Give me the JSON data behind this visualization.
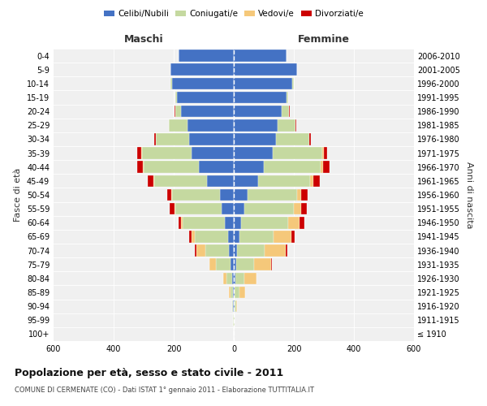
{
  "age_groups": [
    "100+",
    "95-99",
    "90-94",
    "85-89",
    "80-84",
    "75-79",
    "70-74",
    "65-69",
    "60-64",
    "55-59",
    "50-54",
    "45-49",
    "40-44",
    "35-39",
    "30-34",
    "25-29",
    "20-24",
    "15-19",
    "10-14",
    "5-9",
    "0-4"
  ],
  "birth_years": [
    "≤ 1910",
    "1911-1915",
    "1916-1920",
    "1921-1925",
    "1926-1930",
    "1931-1935",
    "1936-1940",
    "1941-1945",
    "1946-1950",
    "1951-1955",
    "1956-1960",
    "1961-1965",
    "1966-1970",
    "1971-1975",
    "1976-1980",
    "1981-1985",
    "1986-1990",
    "1991-1995",
    "1996-2000",
    "2001-2005",
    "2006-2010"
  ],
  "maschi": {
    "celibi": [
      1,
      1,
      2,
      3,
      5,
      10,
      15,
      20,
      30,
      40,
      45,
      90,
      115,
      140,
      150,
      155,
      175,
      190,
      205,
      210,
      185
    ],
    "coniugati": [
      0,
      1,
      3,
      8,
      20,
      50,
      80,
      110,
      140,
      155,
      160,
      175,
      185,
      165,
      110,
      60,
      20,
      5,
      5,
      0,
      0
    ],
    "vedovi": [
      0,
      0,
      1,
      5,
      10,
      20,
      30,
      10,
      5,
      3,
      2,
      2,
      2,
      2,
      0,
      0,
      0,
      0,
      0,
      0,
      0
    ],
    "divorziati": [
      0,
      0,
      0,
      0,
      1,
      2,
      5,
      8,
      10,
      15,
      15,
      20,
      20,
      15,
      5,
      2,
      1,
      0,
      0,
      0,
      0
    ]
  },
  "femmine": {
    "nubili": [
      1,
      1,
      2,
      3,
      5,
      8,
      12,
      18,
      25,
      35,
      45,
      80,
      100,
      130,
      140,
      145,
      160,
      175,
      195,
      210,
      175
    ],
    "coniugate": [
      0,
      1,
      5,
      15,
      30,
      60,
      90,
      115,
      155,
      165,
      165,
      175,
      190,
      165,
      110,
      60,
      25,
      5,
      5,
      0,
      0
    ],
    "vedove": [
      0,
      1,
      5,
      20,
      40,
      55,
      70,
      60,
      40,
      25,
      15,
      10,
      8,
      5,
      2,
      1,
      0,
      0,
      0,
      0,
      0
    ],
    "divorziate": [
      0,
      0,
      0,
      1,
      2,
      3,
      6,
      10,
      15,
      18,
      20,
      22,
      20,
      12,
      5,
      2,
      1,
      0,
      0,
      0,
      0
    ]
  },
  "colors": {
    "celibi": "#4472c4",
    "coniugati": "#c5d9a0",
    "vedovi": "#f5c87a",
    "divorziati": "#cc0000"
  },
  "legend_labels": [
    "Celibi/Nubili",
    "Coniugati/e",
    "Vedovi/e",
    "Divorziati/e"
  ],
  "title": "Popolazione per età, sesso e stato civile - 2011",
  "subtitle": "COMUNE DI CERMENATE (CO) - Dati ISTAT 1° gennaio 2011 - Elaborazione TUTTITALIA.IT",
  "xlabel_left": "Maschi",
  "xlabel_right": "Femmine",
  "ylabel_left": "Fasce di età",
  "ylabel_right": "Anni di nascita",
  "xlim": 600,
  "background_color": "#ffffff",
  "plot_bg": "#f0f0f0"
}
